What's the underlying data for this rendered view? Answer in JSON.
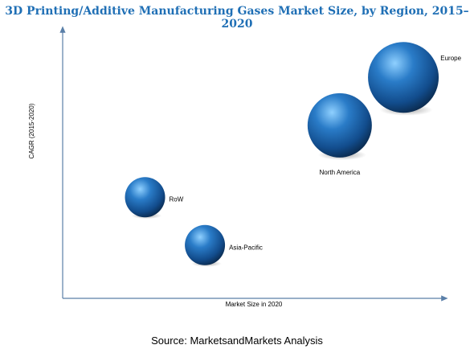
{
  "title": "3D Printing/Additive Manufacturing Gases Market Size, by Region, 2015–2020",
  "source": "Source: MarketsandMarkets Analysis",
  "colors": {
    "bubble_light": "#6fb6ee",
    "bubble_mid": "#1f6db6",
    "bubble_dark": "#0b2d55",
    "title": "#1f6fb5"
  },
  "chart_data": {
    "type": "scatter",
    "subtype": "bubble",
    "title": "3D Printing/Additive Manufacturing Gases Market Size, by Region, 2015–2020",
    "xlabel": "Market Size in 2020",
    "ylabel": "CAGR (2015-2020)",
    "xlim": [
      0,
      10
    ],
    "ylim": [
      0,
      10
    ],
    "x_ticks": false,
    "y_ticks": false,
    "grid": false,
    "legend": "none",
    "points": [
      {
        "label": "Europe",
        "x": 9.1,
        "y": 8.3,
        "size": 44
      },
      {
        "label": "North America",
        "x": 7.4,
        "y": 6.5,
        "size": 40
      },
      {
        "label": "RoW",
        "x": 2.2,
        "y": 3.8,
        "size": 25
      },
      {
        "label": "Asia-Pacific",
        "x": 3.8,
        "y": 2.0,
        "size": 25
      }
    ]
  }
}
